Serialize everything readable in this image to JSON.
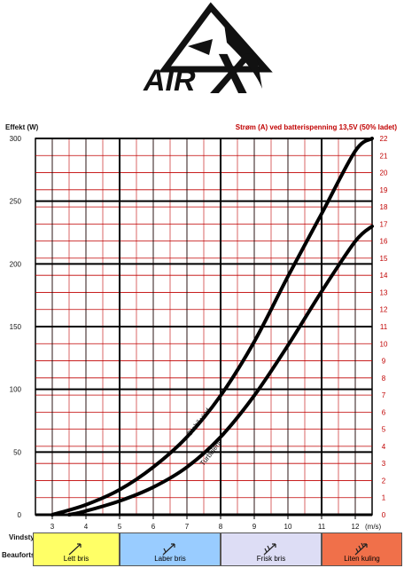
{
  "logo": {
    "text": "AIRX",
    "display": "AIR X"
  },
  "chart_data": {
    "type": "line",
    "ylabel": "Effekt (W)",
    "y2label": "Strøm (A) ved batterispenning 13,5V (50% ladet)",
    "xlabel": "Vindstyrke",
    "xunit": "(m/s)",
    "xlim": [
      2.5,
      12.5
    ],
    "ylim": [
      0,
      300
    ],
    "y2lim": [
      0,
      22
    ],
    "x_ticks": [
      3,
      4,
      5,
      6,
      7,
      8,
      9,
      10,
      11,
      12
    ],
    "y_ticks": [
      0,
      50,
      100,
      150,
      200,
      250,
      300
    ],
    "y2_ticks": [
      0,
      1,
      2,
      3,
      4,
      5,
      6,
      7,
      8,
      9,
      10,
      11,
      12,
      13,
      14,
      15,
      16,
      17,
      18,
      19,
      20,
      21,
      22
    ],
    "grid": true,
    "series": [
      {
        "name": "Stabil vind",
        "x": [
          3.0,
          4.0,
          5.0,
          6.0,
          7.0,
          8.0,
          9.0,
          10.0,
          11.0,
          12.0,
          12.5
        ],
        "y": [
          0,
          8,
          20,
          38,
          62,
          95,
          138,
          190,
          240,
          290,
          300
        ]
      },
      {
        "name": "Turbulent",
        "x": [
          3.5,
          4.0,
          5.0,
          6.0,
          7.0,
          8.0,
          9.0,
          10.0,
          11.0,
          12.0,
          12.5
        ],
        "y": [
          0,
          3,
          11,
          22,
          38,
          62,
          95,
          135,
          178,
          218,
          230
        ]
      }
    ]
  },
  "beaufort": {
    "label": "Beaufortskalaen",
    "cells": [
      {
        "name": "Lett bris",
        "color": "#ffff66",
        "x0": 2.5,
        "x1": 5.0,
        "arrow": "calm"
      },
      {
        "name": "Laber bris",
        "color": "#99ccff",
        "x0": 5.0,
        "x1": 8.0,
        "arrow": "light"
      },
      {
        "name": "Frisk bris",
        "color": "#ddddf5",
        "x0": 8.0,
        "x1": 11.0,
        "arrow": "moderate"
      },
      {
        "name": "Liten kuling",
        "color": "#f0704a",
        "x0": 11.0,
        "x1": 12.5,
        "arrow": "strong"
      }
    ]
  },
  "colors": {
    "grid_red": "#c00000",
    "grid_black": "#000000",
    "curve": "#000000",
    "right_axis_text": "#c00000"
  }
}
